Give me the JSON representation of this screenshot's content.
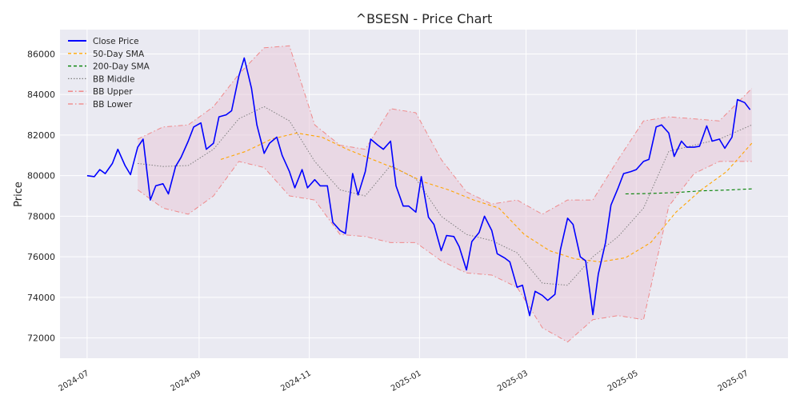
{
  "chart_data": {
    "type": "line",
    "title": "^BSESN - Price Chart",
    "xlabel": "",
    "ylabel": "Price",
    "xlim": [
      "2024-06-16",
      "2025-07-24"
    ],
    "ylim": [
      71000,
      87200
    ],
    "x_ticks": [
      {
        "date": "2024-07-01",
        "label": "2024-07"
      },
      {
        "date": "2024-09-01",
        "label": "2024-09"
      },
      {
        "date": "2024-11-01",
        "label": "2024-11"
      },
      {
        "date": "2025-01-01",
        "label": "2025-01"
      },
      {
        "date": "2025-03-01",
        "label": "2025-03"
      },
      {
        "date": "2025-05-01",
        "label": "2025-05"
      },
      {
        "date": "2025-07-01",
        "label": "2025-07"
      }
    ],
    "y_ticks": [
      72000,
      74000,
      76000,
      78000,
      80000,
      82000,
      84000,
      86000
    ],
    "grid": true,
    "legend_position": "top-left",
    "colors": {
      "background": "#eaeaf2",
      "grid": "#ffffff",
      "close": "#0000ff",
      "sma50": "#ffa500",
      "sma200": "#008000",
      "bb_middle": "#808080",
      "bb_band": "#f08080",
      "bb_fill": "#e8c8d8"
    },
    "series": [
      {
        "name": "Close Price",
        "style": "solid",
        "points": [
          [
            "2024-07-01",
            80000
          ],
          [
            "2024-07-05",
            79950
          ],
          [
            "2024-07-08",
            80300
          ],
          [
            "2024-07-11",
            80100
          ],
          [
            "2024-07-15",
            80600
          ],
          [
            "2024-07-18",
            81300
          ],
          [
            "2024-07-22",
            80500
          ],
          [
            "2024-07-25",
            80050
          ],
          [
            "2024-07-29",
            81400
          ],
          [
            "2024-08-01",
            81800
          ],
          [
            "2024-08-05",
            78800
          ],
          [
            "2024-08-08",
            79500
          ],
          [
            "2024-08-12",
            79600
          ],
          [
            "2024-08-15",
            79100
          ],
          [
            "2024-08-19",
            80450
          ],
          [
            "2024-08-22",
            80900
          ],
          [
            "2024-08-26",
            81700
          ],
          [
            "2024-08-29",
            82400
          ],
          [
            "2024-09-02",
            82600
          ],
          [
            "2024-09-05",
            81300
          ],
          [
            "2024-09-09",
            81600
          ],
          [
            "2024-09-12",
            82900
          ],
          [
            "2024-09-16",
            83000
          ],
          [
            "2024-09-19",
            83200
          ],
          [
            "2024-09-23",
            84900
          ],
          [
            "2024-09-26",
            85800
          ],
          [
            "2024-09-30",
            84300
          ],
          [
            "2024-10-03",
            82500
          ],
          [
            "2024-10-07",
            81100
          ],
          [
            "2024-10-10",
            81600
          ],
          [
            "2024-10-14",
            81900
          ],
          [
            "2024-10-17",
            81000
          ],
          [
            "2024-10-21",
            80200
          ],
          [
            "2024-10-24",
            79400
          ],
          [
            "2024-10-28",
            80300
          ],
          [
            "2024-10-31",
            79400
          ],
          [
            "2024-11-04",
            79800
          ],
          [
            "2024-11-07",
            79500
          ],
          [
            "2024-11-11",
            79500
          ],
          [
            "2024-11-14",
            77700
          ],
          [
            "2024-11-18",
            77300
          ],
          [
            "2024-11-21",
            77150
          ],
          [
            "2024-11-25",
            80100
          ],
          [
            "2024-11-28",
            79050
          ],
          [
            "2024-12-02",
            80200
          ],
          [
            "2024-12-05",
            81800
          ],
          [
            "2024-12-09",
            81500
          ],
          [
            "2024-12-12",
            81300
          ],
          [
            "2024-12-16",
            81700
          ],
          [
            "2024-12-19",
            79500
          ],
          [
            "2024-12-23",
            78500
          ],
          [
            "2024-12-26",
            78500
          ],
          [
            "2024-12-30",
            78200
          ],
          [
            "2025-01-02",
            79950
          ],
          [
            "2025-01-06",
            77950
          ],
          [
            "2025-01-09",
            77600
          ],
          [
            "2025-01-13",
            76300
          ],
          [
            "2025-01-16",
            77050
          ],
          [
            "2025-01-20",
            77000
          ],
          [
            "2025-01-23",
            76500
          ],
          [
            "2025-01-27",
            75350
          ],
          [
            "2025-01-30",
            76750
          ],
          [
            "2025-02-03",
            77200
          ],
          [
            "2025-02-06",
            78000
          ],
          [
            "2025-02-10",
            77300
          ],
          [
            "2025-02-13",
            76150
          ],
          [
            "2025-02-17",
            75950
          ],
          [
            "2025-02-20",
            75750
          ],
          [
            "2025-02-24",
            74500
          ],
          [
            "2025-02-27",
            74600
          ],
          [
            "2025-03-03",
            73100
          ],
          [
            "2025-03-06",
            74300
          ],
          [
            "2025-03-10",
            74100
          ],
          [
            "2025-03-13",
            73850
          ],
          [
            "2025-03-17",
            74150
          ],
          [
            "2025-03-20",
            76350
          ],
          [
            "2025-03-24",
            77900
          ],
          [
            "2025-03-27",
            77600
          ],
          [
            "2025-03-31",
            76000
          ],
          [
            "2025-04-03",
            75800
          ],
          [
            "2025-04-07",
            73150
          ],
          [
            "2025-04-10",
            75150
          ],
          [
            "2025-04-14",
            76700
          ],
          [
            "2025-04-17",
            78550
          ],
          [
            "2025-04-21",
            79400
          ],
          [
            "2025-04-24",
            80100
          ],
          [
            "2025-04-28",
            80200
          ],
          [
            "2025-05-01",
            80300
          ],
          [
            "2025-05-05",
            80700
          ],
          [
            "2025-05-08",
            80800
          ],
          [
            "2025-05-12",
            82400
          ],
          [
            "2025-05-15",
            82500
          ],
          [
            "2025-05-19",
            82100
          ],
          [
            "2025-05-22",
            80950
          ],
          [
            "2025-05-26",
            81700
          ],
          [
            "2025-05-29",
            81400
          ],
          [
            "2025-06-02",
            81400
          ],
          [
            "2025-06-05",
            81450
          ],
          [
            "2025-06-09",
            82450
          ],
          [
            "2025-06-12",
            81700
          ],
          [
            "2025-06-16",
            81800
          ],
          [
            "2025-06-19",
            81350
          ],
          [
            "2025-06-23",
            81900
          ],
          [
            "2025-06-26",
            83750
          ],
          [
            "2025-06-30",
            83600
          ],
          [
            "2025-07-03",
            83250
          ]
        ]
      },
      {
        "name": "50-Day SMA",
        "style": "dashed",
        "points": [
          [
            "2024-09-13",
            80800
          ],
          [
            "2024-09-27",
            81200
          ],
          [
            "2024-10-11",
            81800
          ],
          [
            "2024-10-25",
            82100
          ],
          [
            "2024-11-08",
            81900
          ],
          [
            "2024-11-22",
            81300
          ],
          [
            "2024-12-06",
            80800
          ],
          [
            "2024-12-20",
            80300
          ],
          [
            "2025-01-03",
            79700
          ],
          [
            "2025-01-17",
            79300
          ],
          [
            "2025-01-31",
            78800
          ],
          [
            "2025-02-14",
            78400
          ],
          [
            "2025-02-28",
            77100
          ],
          [
            "2025-03-14",
            76300
          ],
          [
            "2025-03-28",
            75900
          ],
          [
            "2025-04-11",
            75750
          ],
          [
            "2025-04-25",
            75950
          ],
          [
            "2025-05-09",
            76700
          ],
          [
            "2025-05-23",
            78200
          ],
          [
            "2025-06-06",
            79300
          ],
          [
            "2025-06-20",
            80200
          ],
          [
            "2025-07-04",
            81600
          ]
        ]
      },
      {
        "name": "200-Day SMA",
        "style": "dashed",
        "points": [
          [
            "2025-04-25",
            79100
          ],
          [
            "2025-05-09",
            79120
          ],
          [
            "2025-05-23",
            79170
          ],
          [
            "2025-06-06",
            79250
          ],
          [
            "2025-06-20",
            79290
          ],
          [
            "2025-07-04",
            79350
          ]
        ]
      },
      {
        "name": "BB Middle",
        "style": "dotted",
        "points": [
          [
            "2024-07-29",
            80600
          ],
          [
            "2024-08-12",
            80450
          ],
          [
            "2024-08-26",
            80500
          ],
          [
            "2024-09-09",
            81300
          ],
          [
            "2024-09-23",
            82800
          ],
          [
            "2024-10-07",
            83400
          ],
          [
            "2024-10-21",
            82700
          ],
          [
            "2024-11-04",
            80700
          ],
          [
            "2024-11-18",
            79300
          ],
          [
            "2024-12-02",
            79000
          ],
          [
            "2024-12-16",
            80500
          ],
          [
            "2024-12-30",
            79850
          ],
          [
            "2025-01-13",
            78000
          ],
          [
            "2025-01-27",
            77100
          ],
          [
            "2025-02-10",
            76800
          ],
          [
            "2025-02-24",
            76200
          ],
          [
            "2025-03-10",
            74700
          ],
          [
            "2025-03-24",
            74600
          ],
          [
            "2025-04-07",
            76000
          ],
          [
            "2025-04-21",
            77000
          ],
          [
            "2025-05-05",
            78400
          ],
          [
            "2025-05-19",
            81200
          ],
          [
            "2025-06-02",
            81500
          ],
          [
            "2025-06-16",
            81800
          ],
          [
            "2025-07-04",
            82500
          ]
        ]
      },
      {
        "name": "BB Upper",
        "style": "dashdot",
        "points": [
          [
            "2024-07-29",
            81800
          ],
          [
            "2024-08-12",
            82400
          ],
          [
            "2024-08-26",
            82500
          ],
          [
            "2024-09-09",
            83400
          ],
          [
            "2024-09-23",
            85000
          ],
          [
            "2024-10-07",
            86300
          ],
          [
            "2024-10-21",
            86400
          ],
          [
            "2024-11-04",
            82500
          ],
          [
            "2024-11-18",
            81500
          ],
          [
            "2024-12-02",
            81300
          ],
          [
            "2024-12-16",
            83300
          ],
          [
            "2024-12-30",
            83100
          ],
          [
            "2025-01-13",
            80800
          ],
          [
            "2025-01-27",
            79200
          ],
          [
            "2025-02-10",
            78600
          ],
          [
            "2025-02-24",
            78800
          ],
          [
            "2025-03-10",
            78100
          ],
          [
            "2025-03-24",
            78800
          ],
          [
            "2025-04-07",
            78800
          ],
          [
            "2025-04-21",
            80800
          ],
          [
            "2025-05-05",
            82700
          ],
          [
            "2025-05-19",
            82900
          ],
          [
            "2025-06-02",
            82800
          ],
          [
            "2025-06-16",
            82700
          ],
          [
            "2025-07-04",
            84300
          ]
        ]
      },
      {
        "name": "BB Lower",
        "style": "dashdot",
        "points": [
          [
            "2024-07-29",
            79300
          ],
          [
            "2024-08-12",
            78400
          ],
          [
            "2024-08-26",
            78100
          ],
          [
            "2024-09-09",
            79000
          ],
          [
            "2024-09-23",
            80700
          ],
          [
            "2024-10-07",
            80400
          ],
          [
            "2024-10-21",
            79000
          ],
          [
            "2024-11-04",
            78800
          ],
          [
            "2024-11-18",
            77100
          ],
          [
            "2024-12-02",
            77000
          ],
          [
            "2024-12-16",
            76700
          ],
          [
            "2024-12-30",
            76700
          ],
          [
            "2025-01-13",
            75800
          ],
          [
            "2025-01-27",
            75200
          ],
          [
            "2025-02-10",
            75100
          ],
          [
            "2025-02-24",
            74500
          ],
          [
            "2025-03-10",
            72500
          ],
          [
            "2025-03-24",
            71800
          ],
          [
            "2025-04-07",
            72900
          ],
          [
            "2025-04-21",
            73100
          ],
          [
            "2025-05-05",
            72900
          ],
          [
            "2025-05-19",
            78500
          ],
          [
            "2025-06-02",
            80100
          ],
          [
            "2025-06-16",
            80700
          ],
          [
            "2025-07-04",
            80700
          ]
        ]
      }
    ]
  }
}
